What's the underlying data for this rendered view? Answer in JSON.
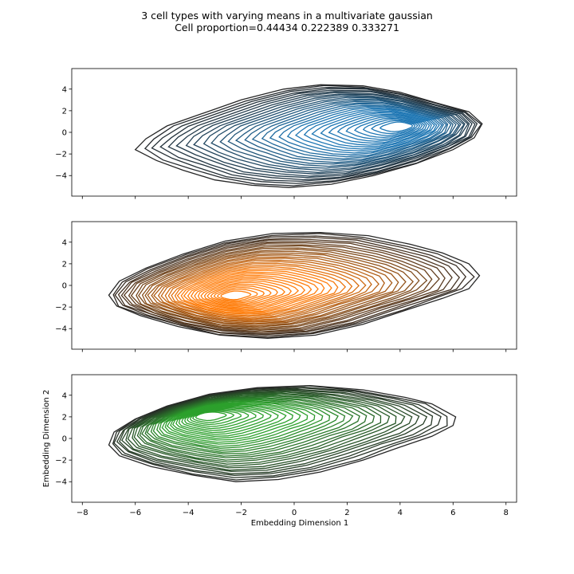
{
  "figure": {
    "title_line1": "3 cell types with varying means in a multivariate gaussian",
    "title_line2": "Cell proportion=0.44434 0.222389 0.333271"
  },
  "chart_data": [
    {
      "type": "kde-contour",
      "title": "",
      "xlabel": "",
      "ylabel": "",
      "xlim": [
        -8.4,
        8.4
      ],
      "ylim": [
        -5.9,
        5.9
      ],
      "xticks": [
        -8,
        -6,
        -4,
        -2,
        0,
        2,
        4,
        6,
        8
      ],
      "yticks": [
        -4,
        -2,
        0,
        2,
        4
      ],
      "show_xticklabels": false,
      "color": "#1f77b4",
      "outer_contour": [
        [
          -6.0,
          -1.6
        ],
        [
          -5.6,
          -0.6
        ],
        [
          -4.8,
          0.6
        ],
        [
          -3.4,
          1.8
        ],
        [
          -2.0,
          3.0
        ],
        [
          -0.4,
          4.0
        ],
        [
          1.0,
          4.4
        ],
        [
          2.6,
          4.3
        ],
        [
          4.0,
          3.7
        ],
        [
          5.4,
          2.7
        ],
        [
          6.6,
          1.9
        ],
        [
          7.1,
          0.8
        ],
        [
          6.8,
          -0.5
        ],
        [
          6.0,
          -1.6
        ],
        [
          4.6,
          -2.9
        ],
        [
          3.0,
          -4.0
        ],
        [
          1.4,
          -4.8
        ],
        [
          -0.2,
          -5.1
        ],
        [
          -1.6,
          -4.9
        ],
        [
          -3.0,
          -4.4
        ],
        [
          -4.2,
          -3.5
        ],
        [
          -5.2,
          -2.6
        ]
      ],
      "density_peak": [
        4.2,
        0.6
      ],
      "density_spread": [
        3.2,
        2.4
      ],
      "levels": 30
    },
    {
      "type": "kde-contour",
      "title": "",
      "xlabel": "",
      "ylabel": "",
      "xlim": [
        -8.4,
        8.4
      ],
      "ylim": [
        -5.9,
        5.9
      ],
      "xticks": [
        -8,
        -6,
        -4,
        -2,
        0,
        2,
        4,
        6,
        8
      ],
      "yticks": [
        -4,
        -2,
        0,
        2,
        4
      ],
      "show_xticklabels": false,
      "color": "#ff7f0e",
      "outer_contour": [
        [
          -7.0,
          -0.9
        ],
        [
          -6.6,
          0.4
        ],
        [
          -5.6,
          1.6
        ],
        [
          -4.2,
          2.9
        ],
        [
          -2.6,
          4.1
        ],
        [
          -0.8,
          4.8
        ],
        [
          1.0,
          4.9
        ],
        [
          2.8,
          4.6
        ],
        [
          4.4,
          3.8
        ],
        [
          5.6,
          3.0
        ],
        [
          6.6,
          2.0
        ],
        [
          7.0,
          0.9
        ],
        [
          6.6,
          -0.3
        ],
        [
          5.6,
          -1.2
        ],
        [
          4.2,
          -2.3
        ],
        [
          2.6,
          -3.6
        ],
        [
          0.8,
          -4.6
        ],
        [
          -1.0,
          -4.9
        ],
        [
          -2.8,
          -4.6
        ],
        [
          -4.4,
          -3.8
        ],
        [
          -5.8,
          -2.8
        ],
        [
          -6.7,
          -1.9
        ]
      ],
      "density_peak": [
        -2.4,
        -1.0
      ],
      "density_spread": [
        3.6,
        2.8
      ],
      "levels": 35
    },
    {
      "type": "kde-contour",
      "title": "",
      "xlabel": "Embedding Dimension 1",
      "ylabel": "Embedding Dimension 2",
      "xlim": [
        -8.4,
        8.4
      ],
      "ylim": [
        -5.9,
        5.9
      ],
      "xticks": [
        -8,
        -6,
        -4,
        -2,
        0,
        2,
        4,
        6,
        8
      ],
      "yticks": [
        -4,
        -2,
        0,
        2,
        4
      ],
      "show_xticklabels": true,
      "color": "#2ca02c",
      "outer_contour": [
        [
          -7.0,
          -0.6
        ],
        [
          -6.8,
          0.6
        ],
        [
          -6.0,
          1.8
        ],
        [
          -4.8,
          3.0
        ],
        [
          -3.2,
          4.1
        ],
        [
          -1.4,
          4.7
        ],
        [
          0.6,
          4.9
        ],
        [
          2.6,
          4.5
        ],
        [
          4.2,
          3.8
        ],
        [
          5.2,
          3.2
        ],
        [
          6.1,
          2.0
        ],
        [
          6.0,
          1.2
        ],
        [
          5.2,
          0.2
        ],
        [
          4.0,
          -0.8
        ],
        [
          2.6,
          -2.0
        ],
        [
          1.0,
          -3.1
        ],
        [
          -0.6,
          -3.8
        ],
        [
          -2.2,
          -4.0
        ],
        [
          -3.8,
          -3.4
        ],
        [
          -5.4,
          -2.6
        ],
        [
          -6.6,
          -1.6
        ]
      ],
      "density_peak": [
        -3.4,
        2.2
      ],
      "density_spread": [
        3.4,
        2.6
      ],
      "levels": 32
    }
  ]
}
